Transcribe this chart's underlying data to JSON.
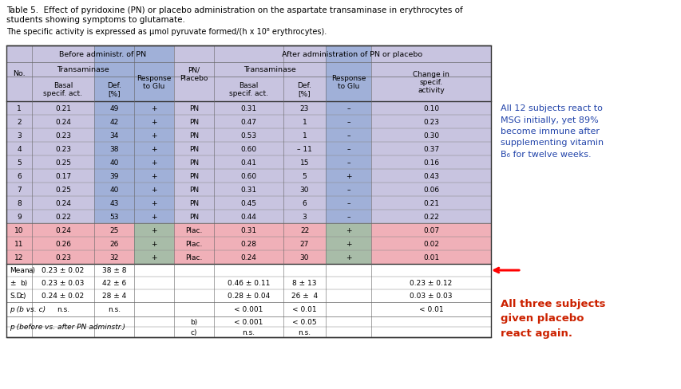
{
  "title_line1": "Table 5.  Effect of pyridoxine (PN) or placebo administration on the aspartate transaminase in erythrocytes of",
  "title_line2": "students showing symptoms to glutamate.",
  "subtitle": "The specific activity is expressed as μmol pyruvate formed/(h x 10⁸ erythrocytes).",
  "data_rows": [
    [
      "1",
      "0.21",
      "49",
      "+",
      "PN",
      "0.31",
      "23",
      "–",
      "0.10"
    ],
    [
      "2",
      "0.24",
      "42",
      "+",
      "PN",
      "0.47",
      "1",
      "–",
      "0.23"
    ],
    [
      "3",
      "0.23",
      "34",
      "+",
      "PN",
      "0.53",
      "1",
      "–",
      "0.30"
    ],
    [
      "4",
      "0.23",
      "38",
      "+",
      "PN",
      "0.60",
      "– 11",
      "–",
      "0.37"
    ],
    [
      "5",
      "0.25",
      "40",
      "+",
      "PN",
      "0.41",
      "15",
      "–",
      "0.16"
    ],
    [
      "6",
      "0.17",
      "39",
      "+",
      "PN",
      "0.60",
      "5",
      "+",
      "0.43"
    ],
    [
      "7",
      "0.25",
      "40",
      "+",
      "PN",
      "0.31",
      "30",
      "–",
      "0.06"
    ],
    [
      "8",
      "0.24",
      "43",
      "+",
      "PN",
      "0.45",
      "6",
      "–",
      "0.21"
    ],
    [
      "9",
      "0.22",
      "53",
      "+",
      "PN",
      "0.44",
      "3",
      "–",
      "0.22"
    ],
    [
      "10",
      "0.24",
      "25",
      "+",
      "Plac.",
      "0.31",
      "22",
      "+",
      "0.07"
    ],
    [
      "11",
      "0.26",
      "26",
      "+",
      "Plac.",
      "0.28",
      "27",
      "+",
      "0.02"
    ],
    [
      "12",
      "0.23",
      "32",
      "+",
      "Plac.",
      "0.24",
      "30",
      "+",
      "0.01"
    ]
  ],
  "bg_lavender": "#c8c4e0",
  "bg_blue_header": "#a0b0d8",
  "bg_pink": "#f0b0b8",
  "bg_sage": "#a8bca8",
  "bg_white": "#ffffff",
  "text_blue_side": "#2244aa",
  "text_red_side": "#cc2200",
  "annotation1": "All 12 subjects react to\nMSG initially, yet 89%\nbecome immune after\nsupplementing vitamin\nB₆ for twelve weeks.",
  "annotation2": "All three subjects\ngiven placebo\nreact again."
}
